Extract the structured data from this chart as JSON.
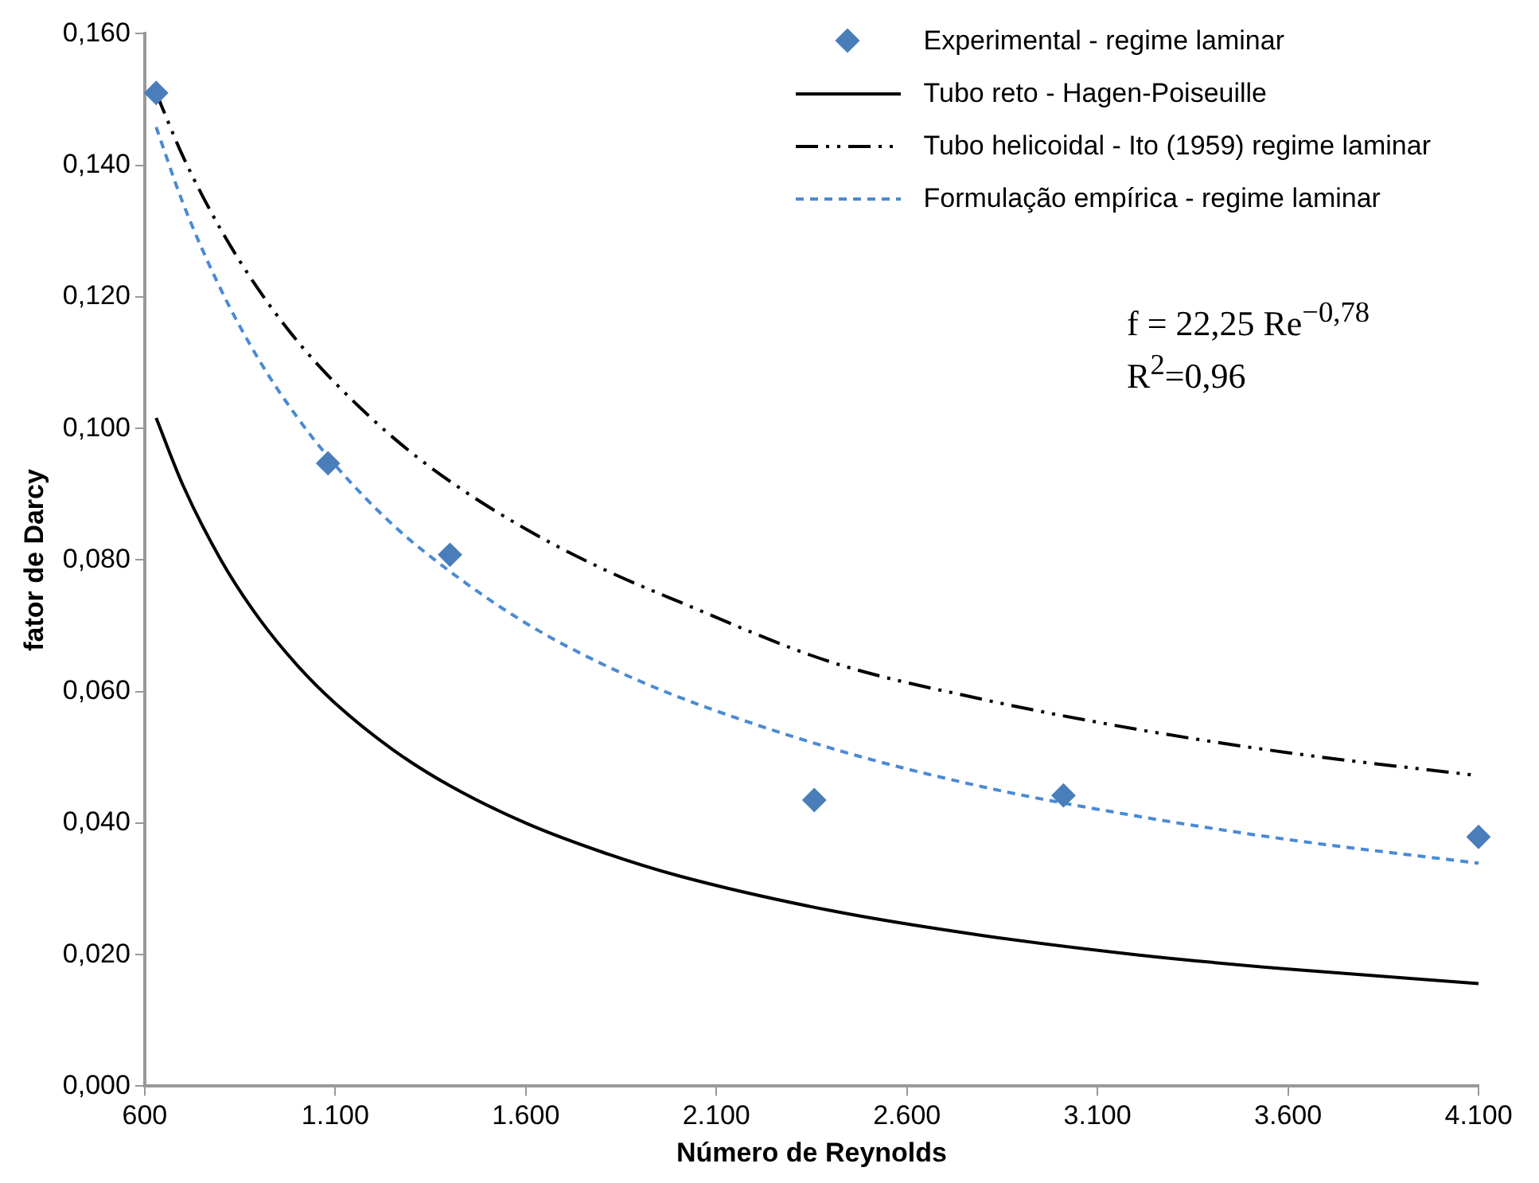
{
  "chart_data": {
    "type": "scatter",
    "xlabel": "Número de Reynolds",
    "ylabel": "fator de Darcy",
    "xlim": [
      600,
      4100
    ],
    "xticks": [
      {
        "value": 600,
        "label": "600"
      },
      {
        "value": 1100,
        "label": "1.100"
      },
      {
        "value": 1600,
        "label": "1.600"
      },
      {
        "value": 2100,
        "label": "2.100"
      },
      {
        "value": 2600,
        "label": "2.600"
      },
      {
        "value": 3100,
        "label": "3.100"
      },
      {
        "value": 3600,
        "label": "3.600"
      },
      {
        "value": 4100,
        "label": "4.100"
      }
    ],
    "ylim": [
      0,
      0.16
    ],
    "yticks": [
      {
        "value": 0,
        "label": "0,000"
      },
      {
        "value": 0.02,
        "label": "0,020"
      },
      {
        "value": 0.04,
        "label": "0,040"
      },
      {
        "value": 0.06,
        "label": "0,060"
      },
      {
        "value": 0.08,
        "label": "0,080"
      },
      {
        "value": 0.1,
        "label": "0,100"
      },
      {
        "value": 0.12,
        "label": "0,120"
      },
      {
        "value": 0.14,
        "label": "0,140"
      },
      {
        "value": 0.16,
        "label": "0,160"
      }
    ],
    "grid": false,
    "legend": "top right",
    "series": [
      {
        "name": "Experimental - regime laminar",
        "marker": "diamond",
        "color": "#4a7ebb",
        "x": [
          630,
          1081,
          1401,
          2357,
          3011,
          4100
        ],
        "values": [
          0.151,
          0.0947,
          0.0808,
          0.0435,
          0.0442,
          0.0379
        ]
      },
      {
        "name": "Tubo reto - Hagen-Poiseuille",
        "type": "line",
        "marker": "none",
        "line_style": "solid",
        "color": "#000000",
        "x": [
          630,
          700,
          800,
          900,
          1000,
          1100,
          1250,
          1400,
          1600,
          1800,
          2000,
          2400,
          2800,
          3200,
          3600,
          4100
        ],
        "values": [
          0.1016,
          0.0914,
          0.08,
          0.0711,
          0.064,
          0.0582,
          0.0512,
          0.0457,
          0.04,
          0.0356,
          0.032,
          0.0267,
          0.0229,
          0.02,
          0.0178,
          0.0156
        ]
      },
      {
        "name": "Tubo helicoidal - Ito (1959) regime laminar",
        "type": "line",
        "marker": "none",
        "line_style": "dashdot",
        "color": "#000000",
        "x": [
          630,
          700,
          800,
          900,
          1000,
          1100,
          1250,
          1400,
          1600,
          1800,
          2000,
          2400,
          2800,
          3200,
          3600,
          4100
        ],
        "values": [
          0.151,
          0.1414,
          0.1302,
          0.121,
          0.1133,
          0.1069,
          0.0987,
          0.092,
          0.0847,
          0.0787,
          0.0737,
          0.0645,
          0.0588,
          0.0543,
          0.0507,
          0.0472
        ]
      },
      {
        "name": "Formulação empírica - regime laminar",
        "type": "line",
        "marker": "none",
        "line_style": "dashed",
        "color": "#4a8ad4",
        "x": [
          630,
          700,
          800,
          900,
          1000,
          1100,
          1250,
          1400,
          1600,
          1800,
          2000,
          2400,
          2800,
          3200,
          3600,
          4100
        ],
        "values": [
          0.1458,
          0.1343,
          0.1211,
          0.1104,
          0.1017,
          0.0944,
          0.0854,
          0.0783,
          0.0704,
          0.0642,
          0.0592,
          0.0514,
          0.0455,
          0.0411,
          0.0375,
          0.0339
        ]
      }
    ],
    "annotations": [
      "f = 22,25 Re$^{−0,78}$",
      "R$^{2}$=0,96"
    ]
  }
}
